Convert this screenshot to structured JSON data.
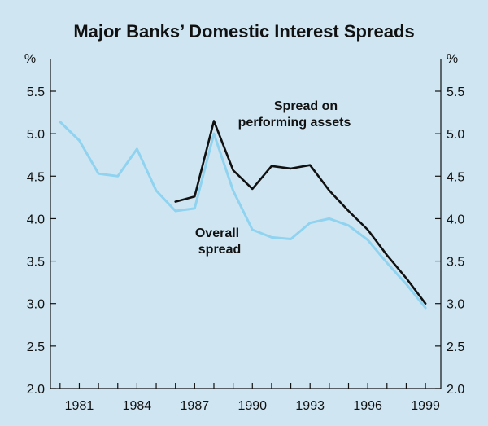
{
  "chart_data": {
    "type": "line",
    "title": "Major Banks’ Domestic Interest Spreads",
    "y_unit_left": "%",
    "y_unit_right": "%",
    "xlim": [
      1979.5,
      1999.8
    ],
    "ylim": [
      2.0,
      5.5
    ],
    "y_ticks": [
      "2.0",
      "2.5",
      "3.0",
      "3.5",
      "4.0",
      "4.5",
      "5.0",
      "5.5"
    ],
    "x_tick_labels": [
      "1981",
      "1984",
      "1987",
      "1990",
      "1993",
      "1996",
      "1999"
    ],
    "grid": false,
    "series": [
      {
        "name": "Overall spread",
        "label_lines": [
          "Overall",
          "spread"
        ],
        "color": "#8fd3f0",
        "x": [
          1980,
          1981,
          1982,
          1983,
          1984,
          1985,
          1986,
          1987,
          1988,
          1989,
          1990,
          1991,
          1992,
          1993,
          1994,
          1995,
          1996,
          1997,
          1998,
          1999
        ],
        "y": [
          5.14,
          4.92,
          4.53,
          4.5,
          4.82,
          4.33,
          4.09,
          4.12,
          5.0,
          4.33,
          3.87,
          3.78,
          3.76,
          3.95,
          4.0,
          3.92,
          3.75,
          3.48,
          3.23,
          2.95
        ]
      },
      {
        "name": "Spread on performing assets",
        "label_lines": [
          "Spread on",
          "performing assets"
        ],
        "color": "#111111",
        "x": [
          1986,
          1987,
          1988,
          1989,
          1990,
          1991,
          1992,
          1993,
          1994,
          1995,
          1996,
          1997,
          1998,
          1999
        ],
        "y": [
          4.2,
          4.26,
          5.15,
          4.57,
          4.35,
          4.62,
          4.59,
          4.63,
          4.33,
          4.09,
          3.87,
          3.57,
          3.3,
          3.0
        ]
      }
    ]
  }
}
